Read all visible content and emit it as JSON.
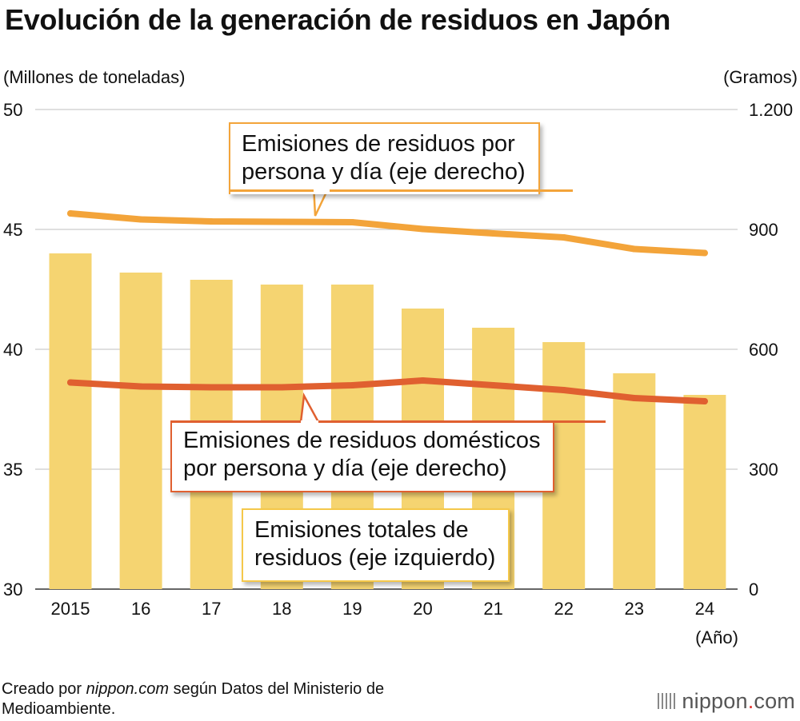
{
  "title": "Evolución de la generación de residuos en Japón",
  "chart_data": {
    "type": "bar+line",
    "title": "Evolución de la generación de residuos en Japón",
    "categories": [
      "2015",
      "16",
      "17",
      "18",
      "19",
      "20",
      "21",
      "22",
      "23",
      "24"
    ],
    "xlabel": "(Año)",
    "ylabel_left": "(Millones de toneladas)",
    "ylabel_right": "(Gramos)",
    "ylim_left": [
      30,
      50
    ],
    "ylim_right": [
      0,
      1200
    ],
    "yticks_left": [
      30,
      35,
      40,
      45,
      50
    ],
    "yticks_right": [
      0,
      300,
      600,
      900,
      1200
    ],
    "ytick_labels_right": [
      "0",
      "300",
      "600",
      "900",
      "1.200"
    ],
    "series": [
      {
        "name": "Emisiones totales de residuos (eje izquierdo)",
        "type": "bar",
        "axis": "left",
        "color": "#f5d471",
        "values": [
          44.0,
          43.2,
          42.9,
          42.7,
          42.7,
          41.7,
          40.9,
          40.3,
          39.0,
          38.1
        ]
      },
      {
        "name": "Emisiones de residuos por persona y día (eje derecho)",
        "type": "line",
        "axis": "right",
        "color": "#f3a43a",
        "values": [
          940,
          925,
          920,
          919,
          918,
          901,
          890,
          880,
          851,
          841
        ]
      },
      {
        "name": "Emisiones de residuos domésticos por persona y día (eje derecho)",
        "type": "line",
        "axis": "right",
        "color": "#e06030",
        "values": [
          517,
          507,
          505,
          505,
          510,
          522,
          510,
          498,
          478,
          470
        ]
      }
    ]
  },
  "callouts": {
    "per_capita": [
      "Emisiones de residuos por",
      "persona y día (eje derecho)"
    ],
    "household": [
      "Emisiones de residuos domésticos",
      "por persona y día (eje derecho)"
    ],
    "total": [
      "Emisiones totales de",
      "residuos (eje izquierdo)"
    ]
  },
  "footer": {
    "source_prefix": "Creado por ",
    "source_site": "nippon.com",
    "source_suffix": " según Datos del Ministerio de",
    "source_line2": "Medioambiente.",
    "logo_text": "nippon",
    "logo_dot": ".",
    "logo_tld": "com"
  },
  "colors": {
    "bar": "#f5d471",
    "per_capita_line": "#f3a43a",
    "household_line": "#e06030",
    "grid": "#bfbfbf"
  }
}
